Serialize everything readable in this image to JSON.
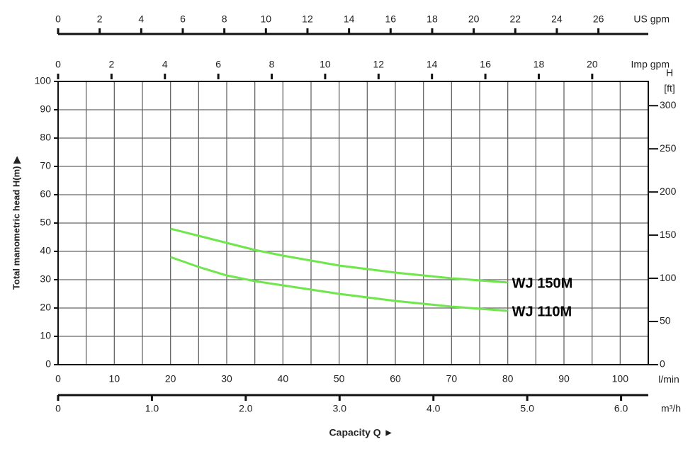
{
  "chart_data": {
    "type": "line",
    "ylabel": "Total manometric head H(m) ▶",
    "xlabel": "Capacity Q ►",
    "x_unit": "l/min",
    "xlim": [
      0,
      105
    ],
    "xticks": [
      0,
      10,
      20,
      30,
      40,
      50,
      60,
      70,
      80,
      90,
      100
    ],
    "xminor": [
      5,
      15,
      25,
      35,
      45,
      55,
      65,
      75,
      85,
      95
    ],
    "ylim": [
      0,
      100
    ],
    "yticks": [
      0,
      10,
      20,
      30,
      40,
      50,
      60,
      70,
      80,
      90,
      100
    ],
    "y2_label": [
      "H",
      "[ft]"
    ],
    "y2lim": [
      0,
      328.08
    ],
    "y2ticks": [
      0,
      50,
      100,
      150,
      200,
      250,
      300
    ],
    "grid": true,
    "extra_x_axes": [
      {
        "position": "top",
        "unit": "US gpm",
        "lim": [
          0,
          28.4
        ],
        "ticks": [
          0,
          2,
          4,
          6,
          8,
          10,
          12,
          14,
          16,
          18,
          20,
          22,
          24,
          26
        ]
      },
      {
        "position": "top",
        "unit": "Imp gpm",
        "lim": [
          0,
          22.1
        ],
        "ticks": [
          0,
          2,
          4,
          6,
          8,
          10,
          12,
          14,
          16,
          18,
          20
        ]
      },
      {
        "position": "bottom",
        "unit": "m³/h",
        "lim": [
          0,
          6.29
        ],
        "ticks": [
          0,
          {
            "value": 1,
            "label": "1.0"
          },
          {
            "value": 2,
            "label": "2.0"
          },
          {
            "value": 3,
            "label": "3.0"
          },
          {
            "value": 4,
            "label": "4.0"
          },
          {
            "value": 5,
            "label": "5.0"
          },
          {
            "value": 6,
            "label": "6.0"
          }
        ]
      }
    ],
    "x": [
      20,
      25,
      30,
      35,
      40,
      50,
      60,
      70,
      80
    ],
    "series": [
      {
        "name": "WJ 150M",
        "color": "#6ee64c",
        "values": [
          48,
          45.5,
          43,
          40.5,
          38.5,
          35,
          32.5,
          30.5,
          29
        ]
      },
      {
        "name": "WJ 110M",
        "color": "#6ee64c",
        "values": [
          38,
          34.5,
          31.5,
          29.5,
          28,
          25,
          22.5,
          20.5,
          19
        ]
      }
    ]
  }
}
